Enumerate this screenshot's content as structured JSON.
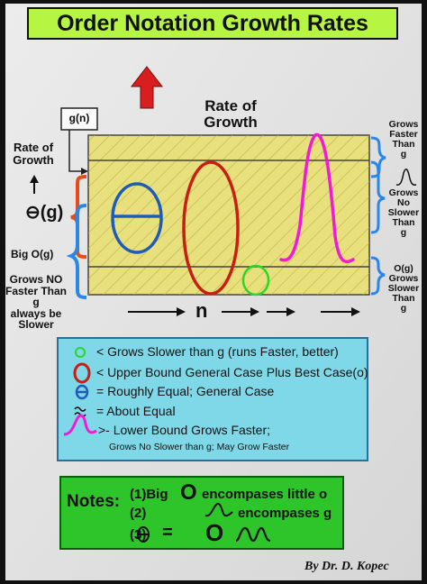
{
  "title": "Order Notation Growth Rates",
  "diagram": {
    "rate_of_growth_top": [
      "Rate of",
      "Growth"
    ],
    "g_of_n": "g(n)",
    "rate_of_growth_left": [
      "Rate of",
      "Growth"
    ],
    "up_arrow": "↑",
    "theta_g": "⊖(g)",
    "big_o_g": "Big O(g)",
    "grows_no_faster": [
      "Grows NO",
      "Faster Than",
      "g"
    ],
    "always_be_slower": [
      "always be",
      "Slower"
    ],
    "n_label": "n",
    "grows_faster_than": [
      "Grows",
      "Faster",
      "Than",
      "g"
    ],
    "grows_no_slower": [
      "Grows",
      "No",
      "Slower",
      "Than",
      "g"
    ],
    "o_g": [
      "O(g)",
      "Grows",
      "Slower",
      "Than",
      "g"
    ]
  },
  "legend": {
    "items": [
      "< Grows Slower than g (runs Faster, better)",
      "< Upper Bound General Case Plus Best Case(o)",
      "= Roughly Equal; General Case",
      "= About Equal",
      ">- Lower Bound Grows Faster;"
    ],
    "subnote": "Grows No Slower than g; May Grow Faster"
  },
  "notes": {
    "label": "Notes:",
    "line1_prefix": "(1)Big",
    "line1_big": "O",
    "line1_suffix": "encompases little o",
    "line2_prefix": "(2)",
    "line2_suffix": "encompases g",
    "line3_prefix": "(3)",
    "line3_eq": "=",
    "line3_big": "O"
  },
  "signature": "By Dr. D. Kopec",
  "colors": {
    "background": "#111111",
    "panel": "#e0e0e0",
    "title_bar": "#b6f542",
    "rect": "#e8e07c",
    "legend_box": "#7fd8e8",
    "notes_box": "#2ec52a",
    "red_arrow": "#d81e1e",
    "blue": "#1f5cb8",
    "red": "#e02a1e",
    "magenta": "#f21ad8",
    "green": "#29d629",
    "brace_orange": "#e84a1a",
    "brace_blue": "#2a86e8"
  }
}
